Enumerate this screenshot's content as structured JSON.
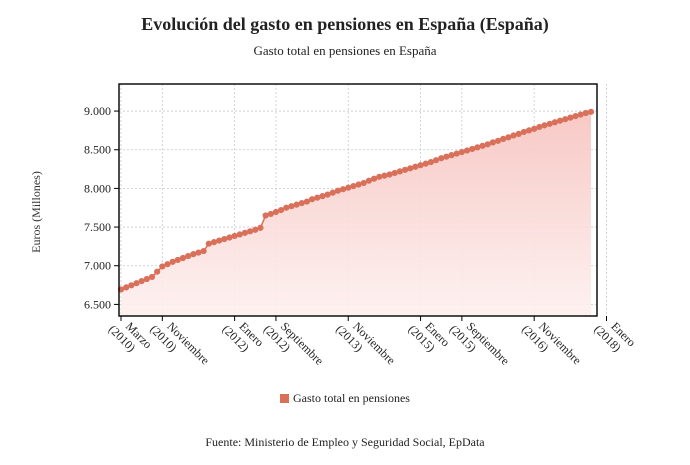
{
  "chart_data": {
    "type": "area",
    "title": "Evolución del gasto en pensiones en España (España)",
    "subtitle": "Gasto total en pensiones en España",
    "ylabel": "Euros (Millones)",
    "xlabel": "",
    "ylim": [
      6350,
      9350
    ],
    "yticks": [
      {
        "value": 6500,
        "label": "6.500"
      },
      {
        "value": 7000,
        "label": "7.000"
      },
      {
        "value": 7500,
        "label": "7.500"
      },
      {
        "value": 8000,
        "label": "8.000"
      },
      {
        "value": 8500,
        "label": "8.500"
      },
      {
        "value": 9000,
        "label": "9.000"
      }
    ],
    "xticks": [
      {
        "index": 0,
        "label": "Marzo",
        "year": "(2010)"
      },
      {
        "index": 8,
        "label": "Noviembre",
        "year": "(2010)"
      },
      {
        "index": 22,
        "label": "Enero",
        "year": "(2012)"
      },
      {
        "index": 30,
        "label": "Septiembre",
        "year": "(2012)"
      },
      {
        "index": 44,
        "label": "Noviembre",
        "year": "(2013)"
      },
      {
        "index": 58,
        "label": "Enero",
        "year": "(2015)"
      },
      {
        "index": 66,
        "label": "Septiembre",
        "year": "(2015)"
      },
      {
        "index": 80,
        "label": "Noviembre",
        "year": "(2016)"
      },
      {
        "index": 94,
        "label": "Enero",
        "year": "(2018)"
      }
    ],
    "grid": true,
    "legend_position": "bottom",
    "series": [
      {
        "name": "Gasto total en pensiones",
        "color": "#d9705a",
        "fill": "#f6c4c0",
        "values": [
          6693,
          6720,
          6747,
          6774,
          6801,
          6828,
          6855,
          6923,
          6991,
          7020,
          7050,
          7075,
          7100,
          7125,
          7150,
          7170,
          7190,
          7285,
          7305,
          7325,
          7345,
          7365,
          7385,
          7405,
          7425,
          7445,
          7465,
          7490,
          7650,
          7670,
          7695,
          7720,
          7750,
          7770,
          7790,
          7810,
          7830,
          7860,
          7880,
          7900,
          7920,
          7945,
          7970,
          7990,
          8010,
          8030,
          8050,
          8070,
          8100,
          8125,
          8150,
          8165,
          8180,
          8200,
          8220,
          8240,
          8260,
          8280,
          8300,
          8320,
          8340,
          8365,
          8390,
          8410,
          8430,
          8450,
          8470,
          8490,
          8510,
          8530,
          8550,
          8570,
          8595,
          8615,
          8640,
          8660,
          8685,
          8705,
          8730,
          8750,
          8770,
          8795,
          8815,
          8835,
          8855,
          8875,
          8895,
          8915,
          8935,
          8955,
          8975,
          8990
        ]
      }
    ]
  },
  "source_text": "Fuente: Ministerio de Empleo y Seguridad Social, EpData"
}
